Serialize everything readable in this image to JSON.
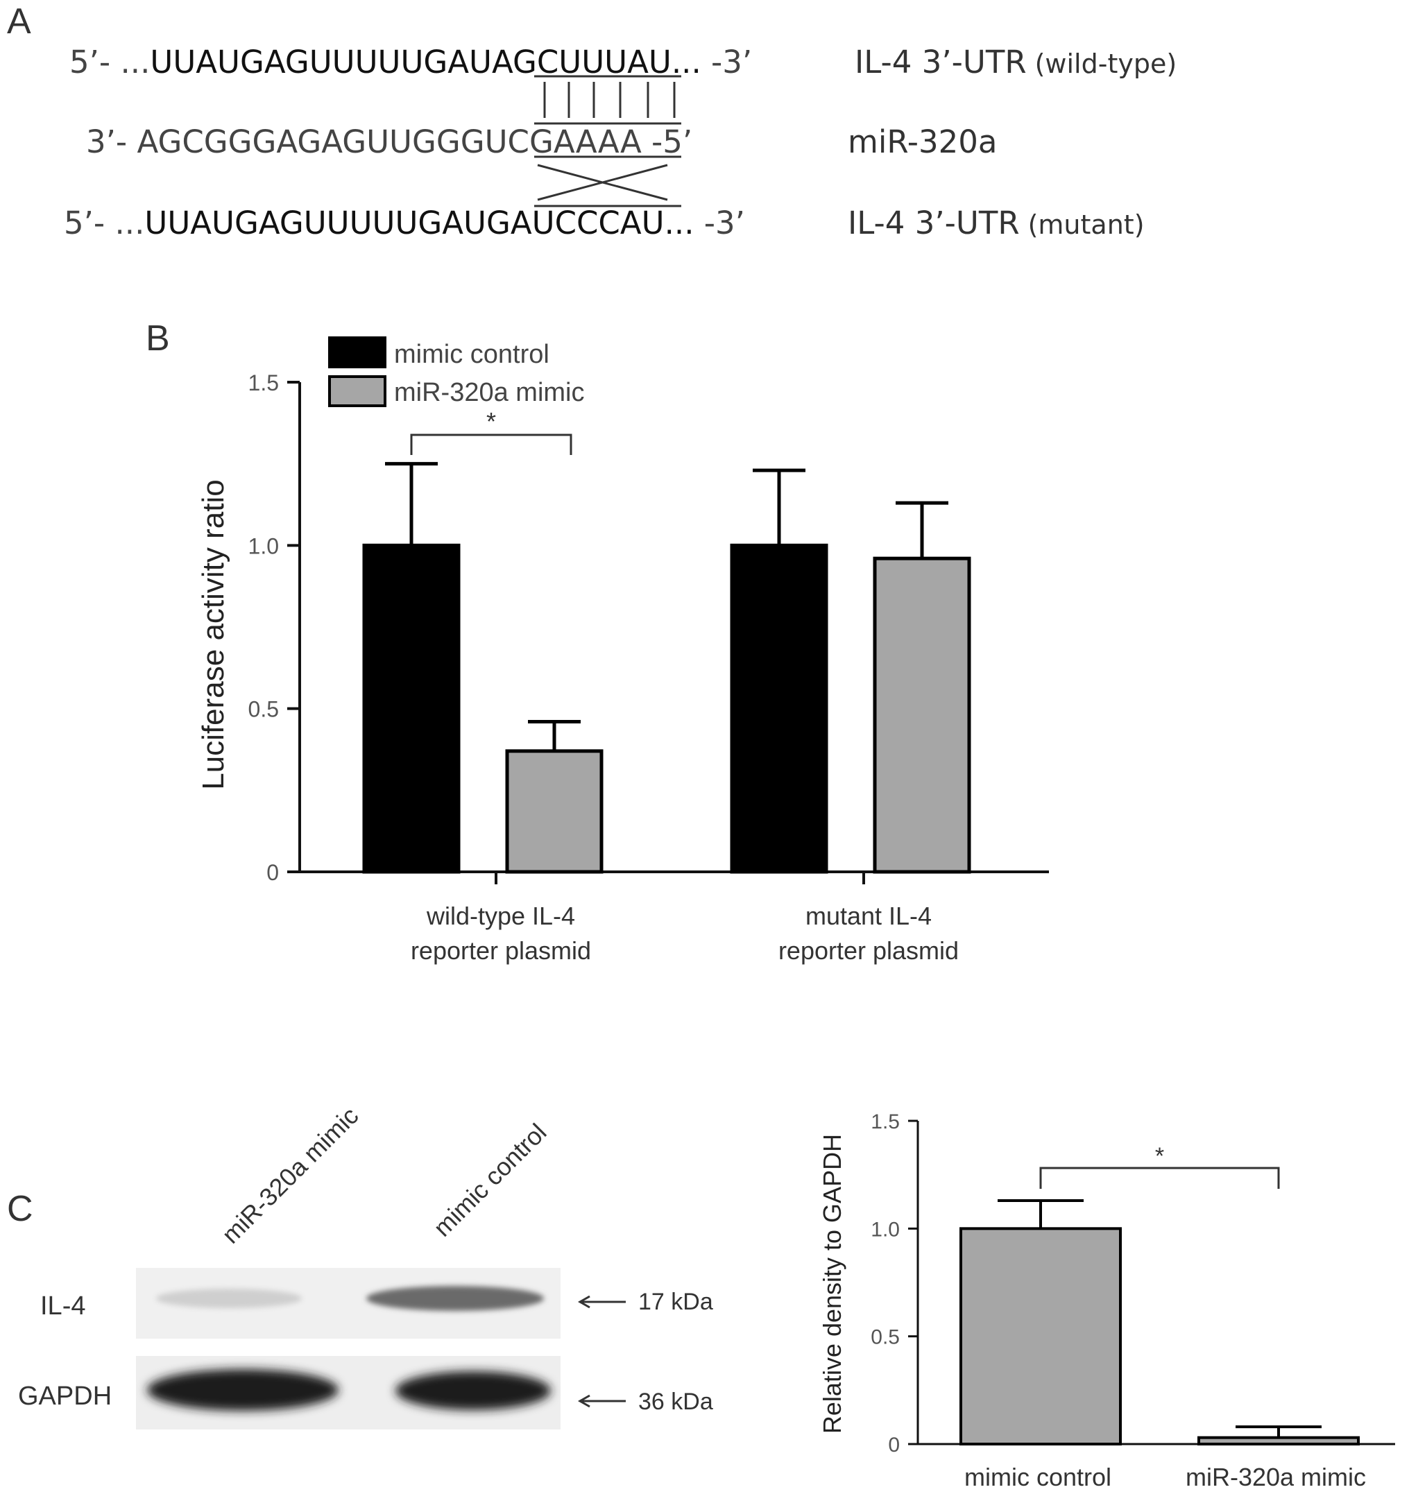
{
  "panel_a": {
    "letter": "A",
    "rows": [
      {
        "prefix": "5’- ...",
        "dark": "UUAUGAGUUUUUGAU",
        "site": "AGCUUU",
        "tail_dark": "AU...",
        "suffix": " -3’",
        "label_main": "IL-4 3’-UTR",
        "label_paren": "(wild-type)"
      },
      {
        "prefix": "3’- ",
        "dark": "AGCGGGAGAGUUGGG",
        "site": "UCGAAA",
        "tail_dark": "A",
        "suffix": " -5’",
        "label_main": "miR-320a",
        "label_paren": ""
      },
      {
        "prefix": "5’- ...",
        "dark": "UUAUGAGUUUUUGAU",
        "site": "GAUCCC",
        "tail_dark": "AU...",
        "suffix": " -3’",
        "label_main": "IL-4 3’-UTR",
        "label_paren": "(mutant)"
      }
    ]
  },
  "panel_b": {
    "letter": "B",
    "chart_data": {
      "type": "bar",
      "ylabel": "Luciferase activity ratio",
      "ylim": [
        0,
        1.5
      ],
      "yticks": [
        "0",
        "0.5",
        "1.0",
        "1.5"
      ],
      "ytick_values": [
        0,
        0.5,
        1.0,
        1.5
      ],
      "categories": [
        [
          "wild-type IL-4",
          "reporter plasmid"
        ],
        [
          "mutant IL-4",
          "reporter plasmid"
        ]
      ],
      "series": [
        {
          "name": "mimic control",
          "color": "#000000",
          "values": [
            1.0,
            1.0
          ],
          "errors": [
            0.25,
            0.23
          ]
        },
        {
          "name": "miR-320a mimic",
          "color": "#a6a6a6",
          "values": [
            0.37,
            0.96
          ],
          "errors": [
            0.09,
            0.17
          ]
        }
      ],
      "significance": [
        {
          "group": 0,
          "label": "*"
        }
      ]
    }
  },
  "panel_c": {
    "letter": "C",
    "blot": {
      "lane_labels": [
        "miR-320a  mimic",
        "mimic control"
      ],
      "rows": [
        {
          "label": "IL-4",
          "marker": "17 kDa"
        },
        {
          "label": "GAPDH",
          "marker": "36 kDa"
        }
      ]
    },
    "chart_data": {
      "type": "bar",
      "ylabel": "Relative density to GAPDH",
      "ylim": [
        0,
        1.5
      ],
      "yticks": [
        "0",
        "0.5",
        "1.0",
        "1.5"
      ],
      "ytick_values": [
        0,
        0.5,
        1.0,
        1.5
      ],
      "categories": [
        "mimic control",
        "miR-320a mimic"
      ],
      "values": [
        1.0,
        0.03
      ],
      "errors": [
        0.13,
        0.05
      ],
      "color": "#a6a6a6",
      "significance": "*"
    }
  }
}
